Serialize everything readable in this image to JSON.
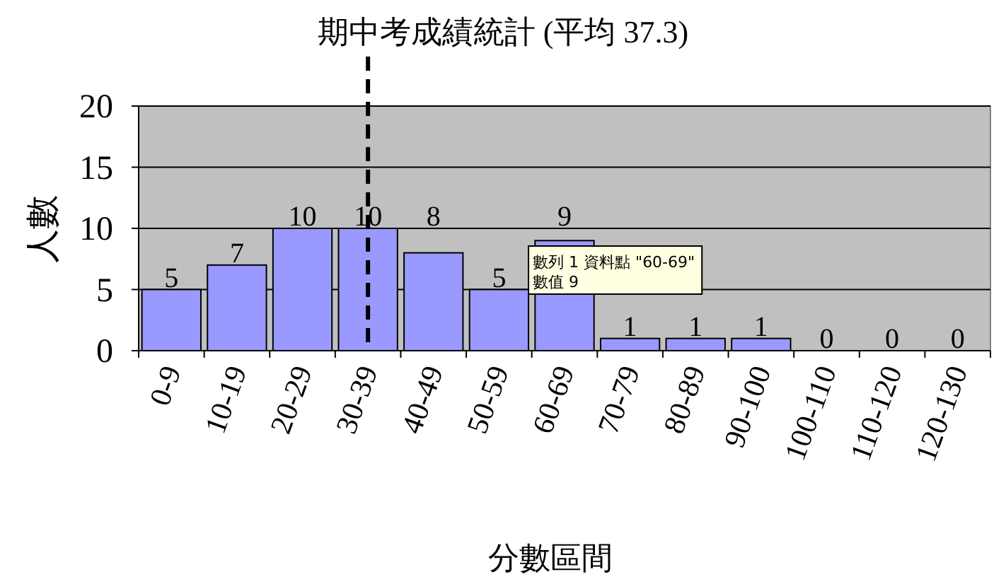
{
  "chart_data": {
    "type": "bar",
    "title": "期中考成績統計 (平均 37.3)",
    "xlabel": "分數區間",
    "ylabel": "人數",
    "categories": [
      "0-9",
      "10-19",
      "20-29",
      "30-39",
      "40-49",
      "50-59",
      "60-69",
      "70-79",
      "80-89",
      "90-100",
      "100-110",
      "110-120",
      "120-130"
    ],
    "values": [
      5,
      7,
      10,
      10,
      8,
      5,
      9,
      1,
      1,
      1,
      0,
      0,
      0
    ],
    "color": "#9999ff",
    "ylim": [
      0,
      20
    ],
    "yticks": [
      0,
      5,
      10,
      15,
      20
    ],
    "grid": "y",
    "data_labels": true,
    "ref_lines": [
      {
        "axis": "x",
        "value": "30-39",
        "color": "#000000",
        "line_style": "dashed"
      }
    ],
    "annotations": [
      "數列 1 資料點 \"60-69\"\n數值 9"
    ]
  }
}
